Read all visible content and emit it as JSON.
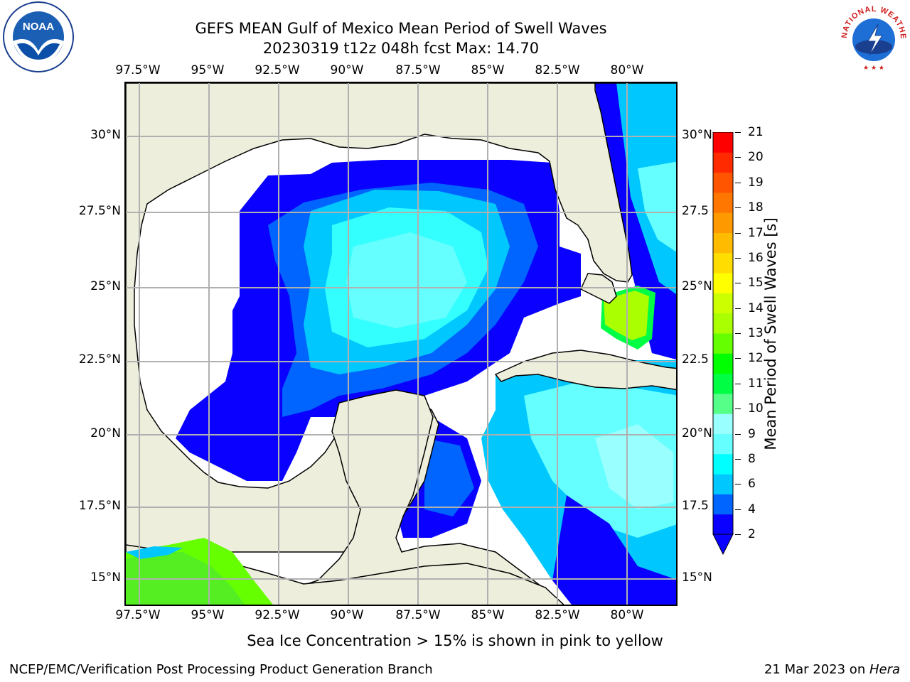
{
  "header": {
    "title_line1": "GEFS MEAN Gulf of Mexico Mean Period of Swell Waves",
    "title_line2": "20230319 t12z 048h fcst   Max: 14.70"
  },
  "axes": {
    "lon_labels": [
      "97.5°W",
      "95°W",
      "92.5°W",
      "90°W",
      "87.5°W",
      "85°W",
      "82.5°W",
      "80°W"
    ],
    "lat_labels_left": [
      "30°N",
      "27.5°N",
      "25°N",
      "22.5°N",
      "20°N",
      "17.5°N",
      "15°N"
    ],
    "lat_labels_right": [
      "30°N",
      "27.5",
      "25°N",
      "22.5",
      "20°N",
      "17.5",
      "15°N"
    ]
  },
  "colorbar": {
    "label": "Mean Period of Swell Waves [s]",
    "ticks": [
      "21",
      "20",
      "19",
      "18",
      "17",
      "16",
      "15",
      "14",
      "13",
      "12",
      "11",
      "10",
      "9",
      "8",
      "6",
      "4",
      "2"
    ],
    "colors_bottom_to_top": [
      "#0a00ff",
      "#0064ff",
      "#00c8ff",
      "#00ffff",
      "#66ffff",
      "#99ffff",
      "#55ff88",
      "#00ff44",
      "#00ff00",
      "#66ff00",
      "#aaff00",
      "#ccff00",
      "#ffff00",
      "#ffdd00",
      "#ffbb00",
      "#ff9900",
      "#ff7700",
      "#ff5500",
      "#ff2a00",
      "#ff0000"
    ],
    "min": 2,
    "max": 21
  },
  "map": {
    "land_color": "#eeeedd",
    "grid_color": "#b0b0b0",
    "ice_note": "Sea Ice Concentration > 15% is shown in pink to yellow"
  },
  "footer": {
    "left": "NCEP/EMC/Verification Post Processing Product Generation Branch",
    "date": "21 Mar 2023 on ",
    "host": "Hera"
  },
  "logos": {
    "noaa_text": "NOAA",
    "nws_text": "NATIONAL WEATHER SERVICE",
    "noaa_icon": "noaa-logo-icon",
    "nws_icon": "nws-logo-icon"
  }
}
